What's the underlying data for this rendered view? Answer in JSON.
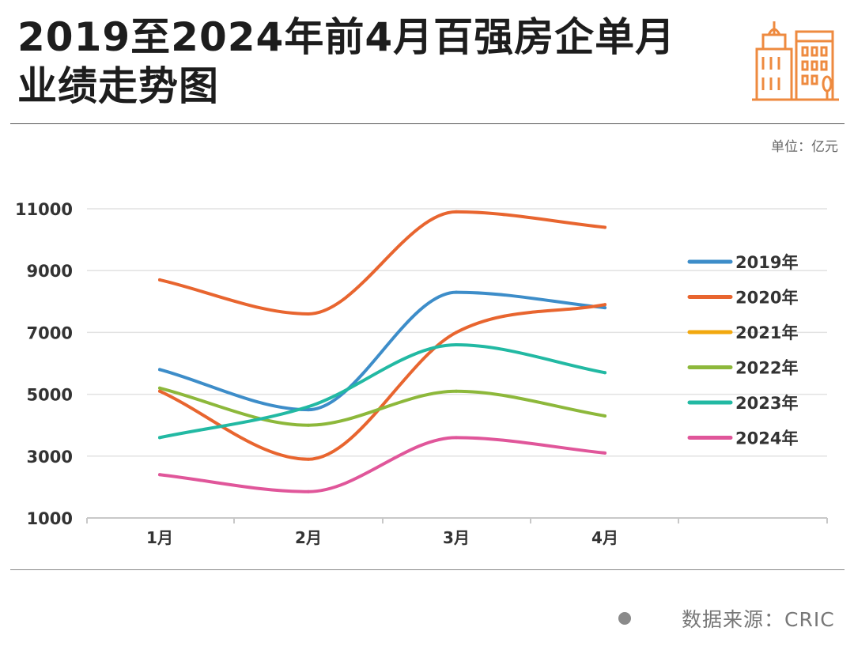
{
  "title_line1": "2019至2024年前4月百强房企单月",
  "title_line2": "业绩走势图",
  "unit_label": "单位：亿元",
  "source_label": "数据来源：CRIC",
  "logo_icon": "building-icon",
  "chart_data": {
    "type": "line",
    "title": "2019至2024年前4月百强房企单月业绩走势图",
    "xlabel": "",
    "ylabel": "",
    "categories": [
      "1月",
      "2月",
      "3月",
      "4月"
    ],
    "ylim": [
      1000,
      11000
    ],
    "yticks": [
      1000,
      3000,
      5000,
      7000,
      9000,
      11000
    ],
    "grid": true,
    "legend_position": "right",
    "series": [
      {
        "name": "2019年",
        "color": "#3D8DC9",
        "values": [
          5800,
          4500,
          8300,
          7800
        ]
      },
      {
        "name": "2020年",
        "color": "#E8652F",
        "values": [
          5100,
          2900,
          7000,
          7900
        ]
      },
      {
        "name": "2021年",
        "color": "#F2A80F",
        "values": [
          8700,
          7600,
          10900,
          10400
        ],
        "line_color": "#E8652F"
      },
      {
        "name": "2022年",
        "color": "#8DB83B",
        "values": [
          5200,
          4000,
          5100,
          4300
        ]
      },
      {
        "name": "2023年",
        "color": "#22B9A3",
        "values": [
          3600,
          4600,
          6600,
          5700
        ]
      },
      {
        "name": "2024年",
        "color": "#E0569A",
        "values": [
          2400,
          1850,
          3600,
          3100
        ]
      }
    ]
  }
}
